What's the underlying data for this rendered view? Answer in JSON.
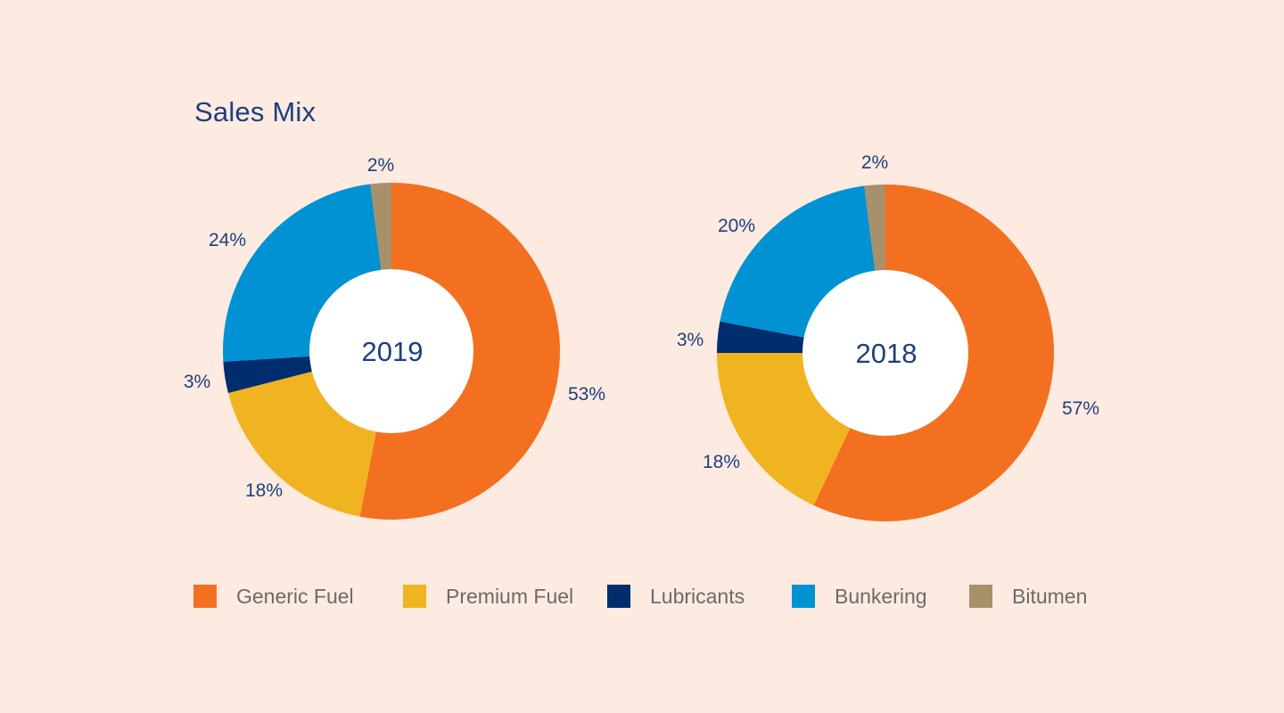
{
  "title": "Sales Mix",
  "chart_data": [
    {
      "type": "pie",
      "center_label": "2019",
      "slices": [
        {
          "label": "Generic Fuel",
          "value": 53,
          "text": "53%",
          "color": "#f37021"
        },
        {
          "label": "Premium Fuel",
          "value": 18,
          "text": "18%",
          "color": "#f0b421"
        },
        {
          "label": "Lubricants",
          "value": 3,
          "text": "3%",
          "color": "#002d6e"
        },
        {
          "label": "Bunkering",
          "value": 24,
          "text": "24%",
          "color": "#0092d2"
        },
        {
          "label": "Bitumen",
          "value": 2,
          "text": "2%",
          "color": "#a8906b"
        }
      ]
    },
    {
      "type": "pie",
      "center_label": "2018",
      "slices": [
        {
          "label": "Generic Fuel",
          "value": 57,
          "text": "57%",
          "color": "#f37021"
        },
        {
          "label": "Premium Fuel",
          "value": 18,
          "text": "18%",
          "color": "#f0b421"
        },
        {
          "label": "Lubricants",
          "value": 3,
          "text": "3%",
          "color": "#002d6e"
        },
        {
          "label": "Bunkering",
          "value": 20,
          "text": "20%",
          "color": "#0092d2"
        },
        {
          "label": "Bitumen",
          "value": 2,
          "text": "2%",
          "color": "#a8906b"
        }
      ]
    }
  ],
  "legend": [
    {
      "label": "Generic Fuel",
      "color": "#f37021"
    },
    {
      "label": "Premium Fuel",
      "color": "#f0b421"
    },
    {
      "label": "Lubricants",
      "color": "#002d6e"
    },
    {
      "label": "Bunkering",
      "color": "#0092d2"
    },
    {
      "label": "Bitumen",
      "color": "#a8906b"
    }
  ]
}
